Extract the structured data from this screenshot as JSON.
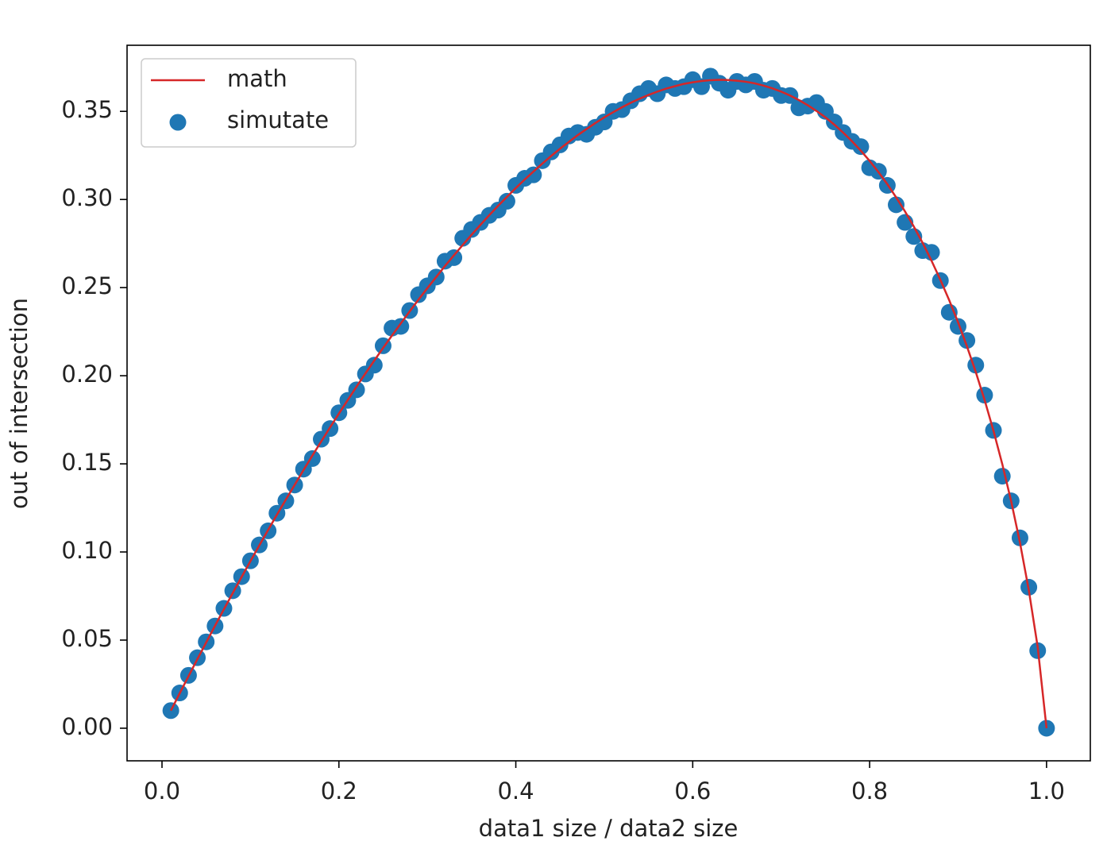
{
  "chart_data": {
    "type": "line",
    "xlabel": "data1 size / data2 size",
    "ylabel": "out of intersection",
    "xlim": [
      -0.0395,
      1.0495
    ],
    "ylim": [
      -0.0185,
      0.3875
    ],
    "xticks": [
      {
        "value": 0,
        "label": "0.0"
      },
      0.2,
      0.4,
      0.6,
      0.8,
      {
        "value": 1,
        "label": "1.0"
      }
    ],
    "yticks": [
      {
        "value": 0,
        "label": "0.00"
      },
      0.05,
      {
        "value": 0.1,
        "label": "0.10"
      },
      0.15,
      {
        "value": 0.2,
        "label": "0.20"
      },
      0.25,
      {
        "value": 0.3,
        "label": "0.30"
      },
      0.35
    ],
    "legend": "upper left",
    "x": [
      0.01,
      0.02,
      0.03,
      0.04,
      0.05,
      0.06,
      0.07,
      0.08,
      0.09,
      0.1,
      0.11,
      0.12,
      0.13,
      0.14,
      0.15,
      0.16,
      0.17,
      0.18,
      0.19,
      0.2,
      0.21,
      0.22,
      0.23,
      0.24,
      0.25,
      0.26,
      0.27,
      0.28,
      0.29,
      0.3,
      0.31,
      0.32,
      0.33,
      0.34,
      0.35,
      0.36,
      0.37,
      0.38,
      0.39,
      0.4,
      0.41,
      0.42,
      0.43,
      0.44,
      0.45,
      0.46,
      0.47,
      0.48,
      0.49,
      0.5,
      0.51,
      0.52,
      0.53,
      0.54,
      0.55,
      0.56,
      0.57,
      0.58,
      0.59,
      0.6,
      0.61,
      0.62,
      0.63,
      0.64,
      0.65,
      0.66,
      0.67,
      0.68,
      0.69,
      0.7,
      0.71,
      0.72,
      0.73,
      0.74,
      0.75,
      0.76,
      0.77,
      0.78,
      0.79,
      0.8,
      0.81,
      0.82,
      0.83,
      0.84,
      0.85,
      0.86,
      0.87,
      0.88,
      0.89,
      0.9,
      0.91,
      0.92,
      0.93,
      0.94,
      0.95,
      0.96,
      0.97,
      0.98,
      0.99,
      1
    ],
    "series": [
      {
        "name": "math",
        "type": "line",
        "color": "#d62728",
        "values": [
          0.00995,
          0.0198,
          0.0295,
          0.0392,
          0.0487,
          0.0582,
          0.0675,
          0.0767,
          0.0858,
          0.0948,
          0.1037,
          0.1125,
          0.1212,
          0.1297,
          0.1381,
          0.1465,
          0.1547,
          0.1627,
          0.1707,
          0.1785,
          0.1862,
          0.1938,
          0.2013,
          0.2086,
          0.2158,
          0.2228,
          0.2297,
          0.2365,
          0.2432,
          0.2497,
          0.256,
          0.2623,
          0.2683,
          0.2742,
          0.28,
          0.2856,
          0.2911,
          0.2964,
          0.3015,
          0.3065,
          0.3113,
          0.3159,
          0.3204,
          0.3247,
          0.3288,
          0.3327,
          0.3365,
          0.34,
          0.3434,
          0.3466,
          0.3495,
          0.3523,
          0.3549,
          0.3572,
          0.3593,
          0.3612,
          0.3629,
          0.3643,
          0.3656,
          0.3665,
          0.3672,
          0.3677,
          0.3679,
          0.3678,
          0.3674,
          0.3668,
          0.3659,
          0.3646,
          0.3631,
          0.3612,
          0.359,
          0.3564,
          0.3535,
          0.3502,
          0.3466,
          0.3425,
          0.338,
          0.3331,
          0.3277,
          0.3219,
          0.3155,
          0.3087,
          0.3012,
          0.2932,
          0.2846,
          0.2753,
          0.2652,
          0.2544,
          0.2428,
          0.2303,
          0.2167,
          0.2021,
          0.1862,
          0.1688,
          0.1498,
          0.1288,
          0.1052,
          0.0782,
          0.0461,
          0
        ]
      },
      {
        "name": "simutate",
        "type": "scatter",
        "color": "#1f77b4",
        "values": [
          0.01,
          0.02,
          0.03,
          0.04,
          0.049,
          0.058,
          0.068,
          0.078,
          0.086,
          0.095,
          0.104,
          0.112,
          0.122,
          0.129,
          0.138,
          0.147,
          0.153,
          0.164,
          0.17,
          0.179,
          0.186,
          0.192,
          0.201,
          0.206,
          0.217,
          0.227,
          0.228,
          0.237,
          0.246,
          0.251,
          0.256,
          0.265,
          0.267,
          0.278,
          0.283,
          0.287,
          0.291,
          0.294,
          0.299,
          0.308,
          0.312,
          0.314,
          0.322,
          0.327,
          0.331,
          0.336,
          0.338,
          0.337,
          0.341,
          0.344,
          0.35,
          0.351,
          0.356,
          0.36,
          0.363,
          0.36,
          0.365,
          0.363,
          0.364,
          0.368,
          0.364,
          0.37,
          0.366,
          0.362,
          0.367,
          0.365,
          0.367,
          0.362,
          0.363,
          0.359,
          0.359,
          0.352,
          0.353,
          0.355,
          0.35,
          0.344,
          0.338,
          0.333,
          0.33,
          0.318,
          0.316,
          0.308,
          0.297,
          0.287,
          0.279,
          0.271,
          0.27,
          0.254,
          0.236,
          0.228,
          0.22,
          0.206,
          0.189,
          0.169,
          0.143,
          0.129,
          0.108,
          0.08,
          0.044,
          0
        ]
      }
    ]
  }
}
